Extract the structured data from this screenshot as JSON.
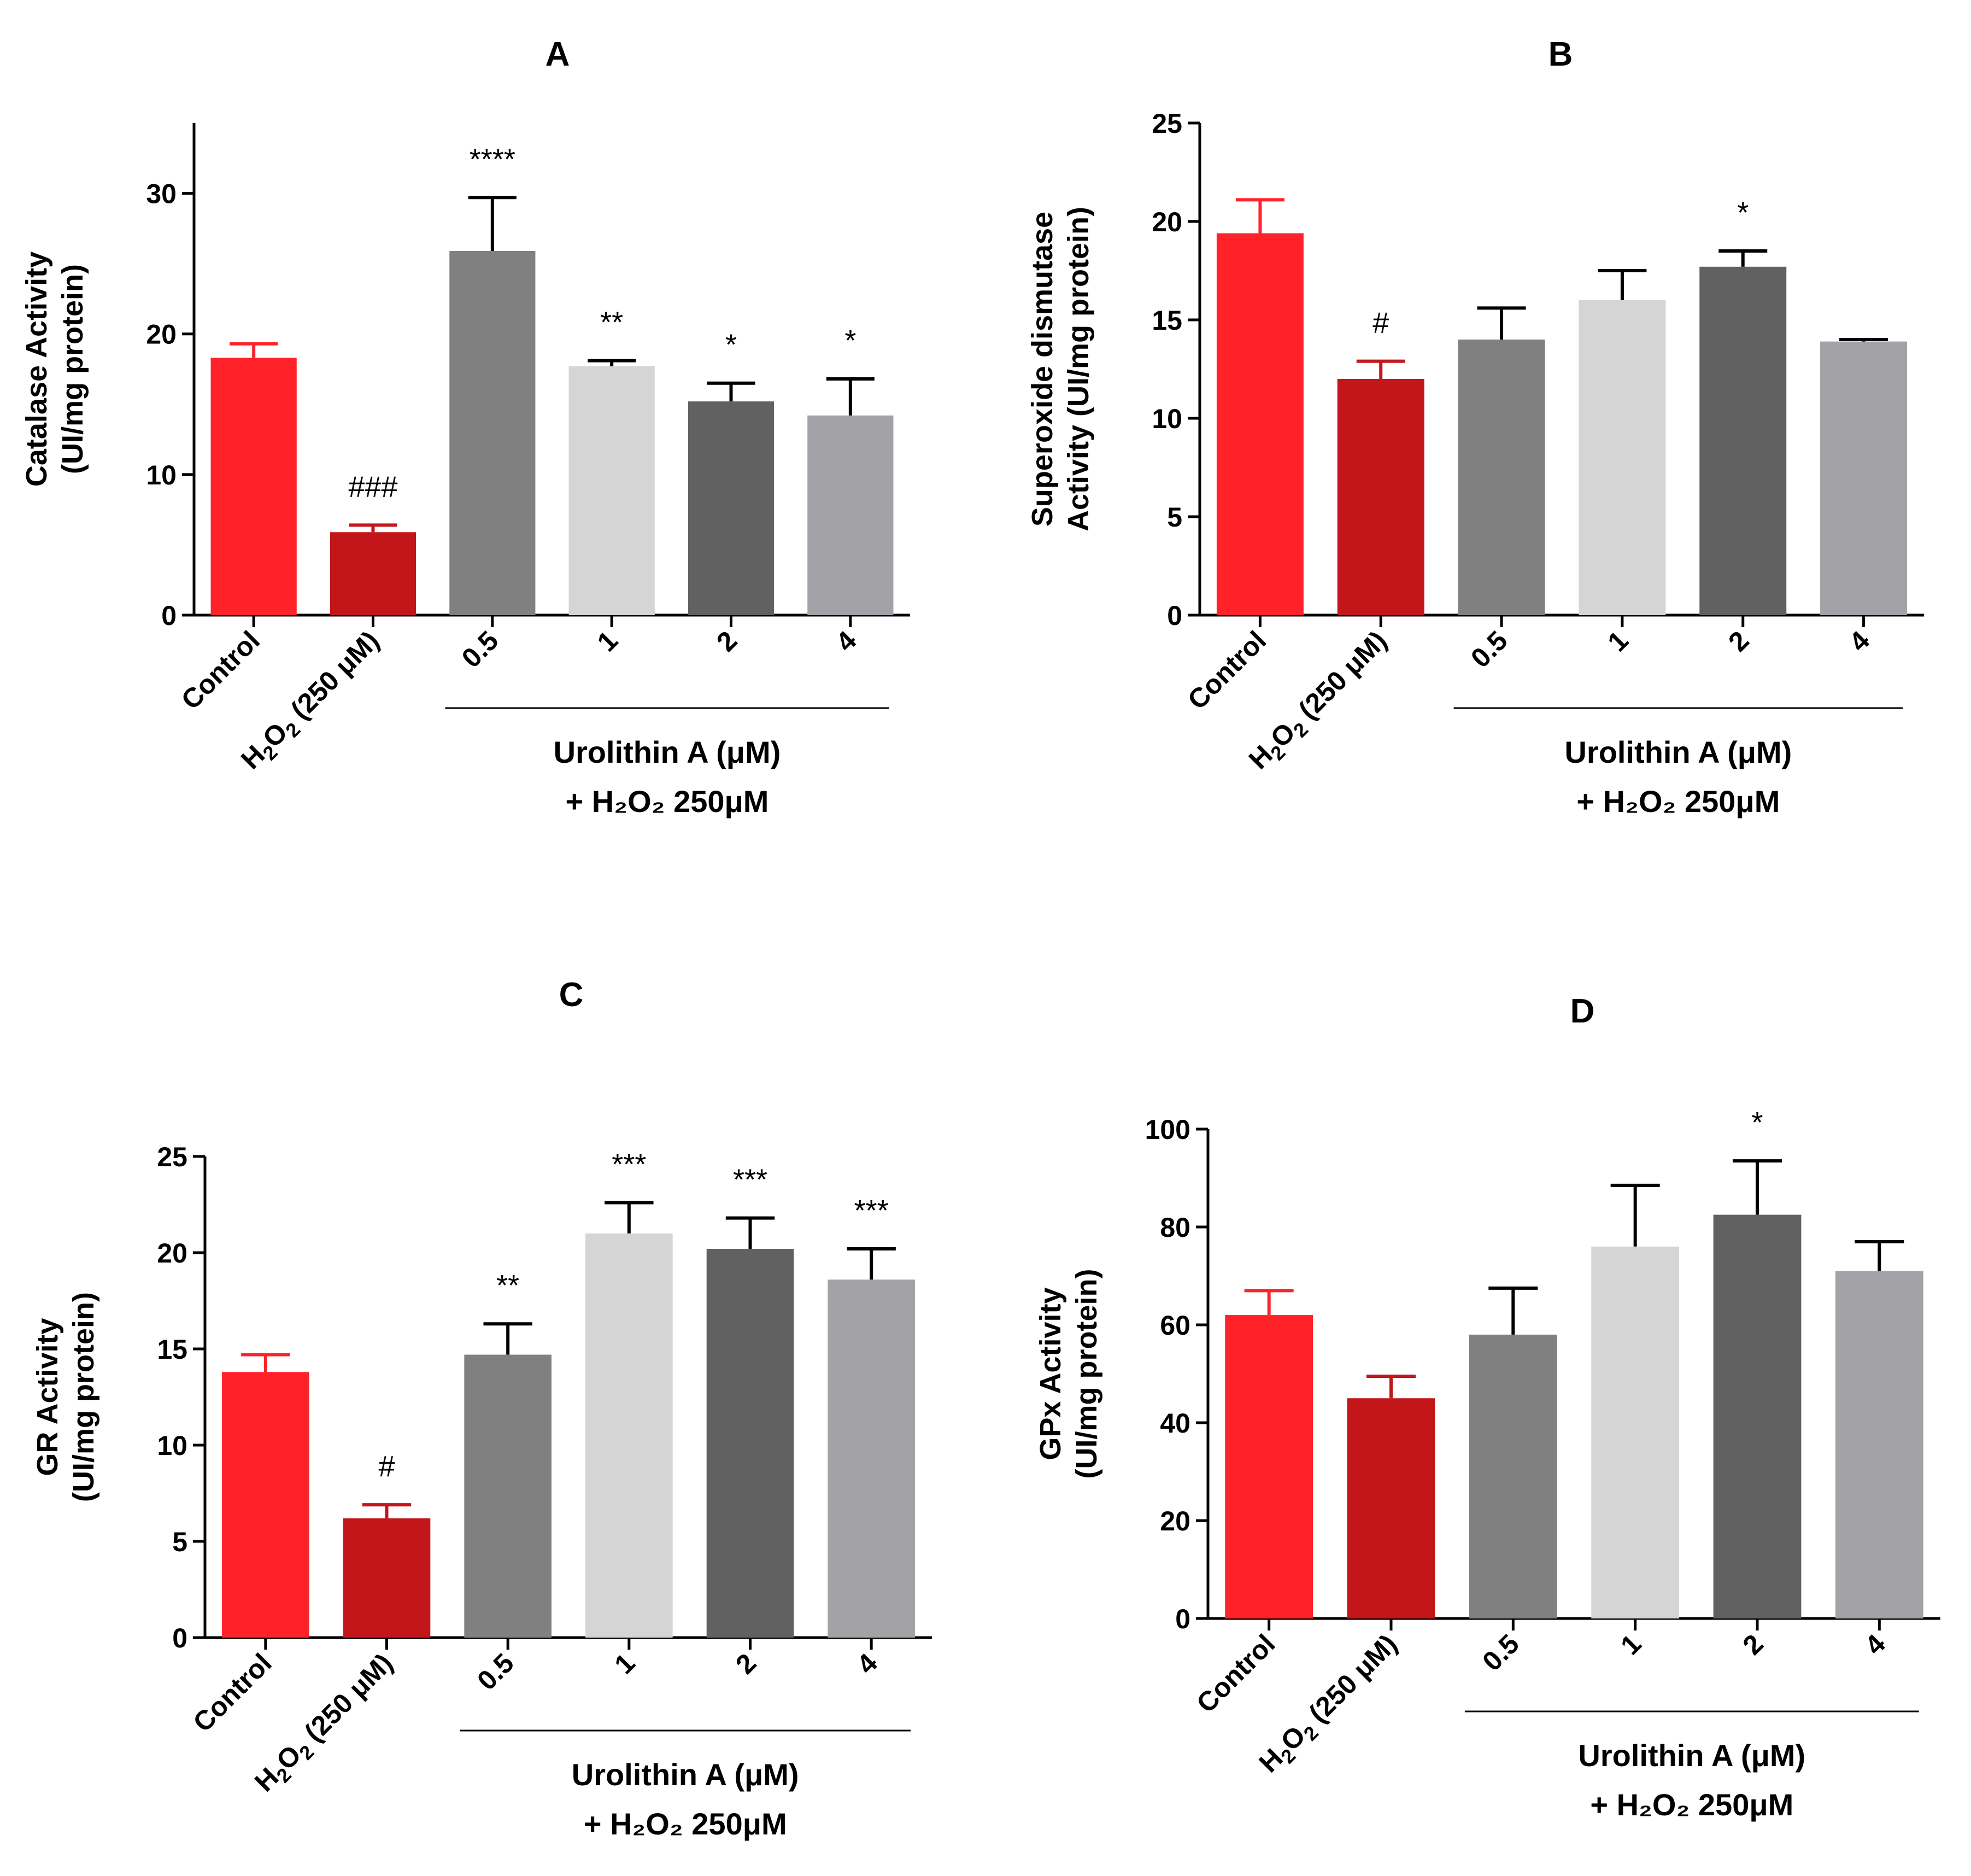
{
  "chart_data": [
    {
      "type": "bar",
      "title": "A",
      "ylabel": [
        "Catalase Activity",
        "(UI/mg protein)"
      ],
      "ylim": [
        0,
        35
      ],
      "yticks": [
        0,
        10,
        20,
        30
      ],
      "categories": [
        "Control",
        "H2O2 (250 μM)",
        "0.5",
        "1",
        "2",
        "4"
      ],
      "values": [
        18.3,
        5.9,
        25.9,
        17.7,
        15.2,
        14.2
      ],
      "errors": [
        1.0,
        0.5,
        3.8,
        0.4,
        1.3,
        2.6
      ],
      "annotations": [
        "",
        "###",
        "****",
        "**",
        "*",
        "*"
      ],
      "group_label": [
        "Urolithin A (μM)",
        "+ H₂O₂ 250μM"
      ]
    },
    {
      "type": "bar",
      "title": "B",
      "ylabel": [
        "Superoxide dismutase",
        "Activity (UI/mg protein)"
      ],
      "ylim": [
        0,
        25
      ],
      "yticks": [
        0,
        5,
        10,
        15,
        20,
        25
      ],
      "categories": [
        "Control",
        "H2O2 (250 μM)",
        "0.5",
        "1",
        "2",
        "4"
      ],
      "values": [
        19.4,
        12.0,
        14.0,
        16.0,
        17.7,
        13.9
      ],
      "errors": [
        1.7,
        0.9,
        1.6,
        1.5,
        0.8,
        0.1
      ],
      "annotations": [
        "",
        "#",
        "",
        "",
        "*",
        ""
      ],
      "group_label": [
        "Urolithin A (μM)",
        "+ H₂O₂ 250μM"
      ]
    },
    {
      "type": "bar",
      "title": "C",
      "ylabel": [
        "GR Activity",
        "(UI/mg protein)"
      ],
      "ylim": [
        0,
        25
      ],
      "yticks": [
        0,
        5,
        10,
        15,
        20,
        25
      ],
      "categories": [
        "Control",
        "H2O2 (250 μM)",
        "0.5",
        "1",
        "2",
        "4"
      ],
      "values": [
        13.8,
        6.2,
        14.7,
        21.0,
        20.2,
        18.6
      ],
      "errors": [
        0.9,
        0.7,
        1.6,
        1.6,
        1.6,
        1.6
      ],
      "annotations": [
        "",
        "#",
        "**",
        "***",
        "***",
        "***"
      ],
      "group_label": [
        "Urolithin A (μM)",
        "+ H₂O₂ 250μM"
      ]
    },
    {
      "type": "bar",
      "title": "D",
      "ylabel": [
        "GPx Activity",
        "(UI/mg protein)"
      ],
      "ylim": [
        0,
        100
      ],
      "yticks": [
        0,
        20,
        40,
        60,
        80,
        100
      ],
      "categories": [
        "Control",
        "H2O2 (250 μM)",
        "0.5",
        "1",
        "2",
        "4"
      ],
      "values": [
        62.0,
        45.0,
        58.0,
        76.0,
        82.5,
        71.0
      ],
      "errors": [
        5.0,
        4.5,
        9.5,
        12.5,
        11.0,
        6.0
      ],
      "annotations": [
        "",
        "",
        "",
        "",
        "*",
        ""
      ],
      "group_label": [
        "Urolithin A (μM)",
        "+ H₂O₂ 250μM"
      ]
    }
  ],
  "bar_colors": [
    "#ff2329",
    "#c3161a",
    "#808080",
    "#d5d5d5",
    "#616161",
    "#a3a3a7"
  ],
  "error_colors": [
    "#ff2329",
    "#c3161a",
    "#000000",
    "#000000",
    "#000000",
    "#000000"
  ]
}
